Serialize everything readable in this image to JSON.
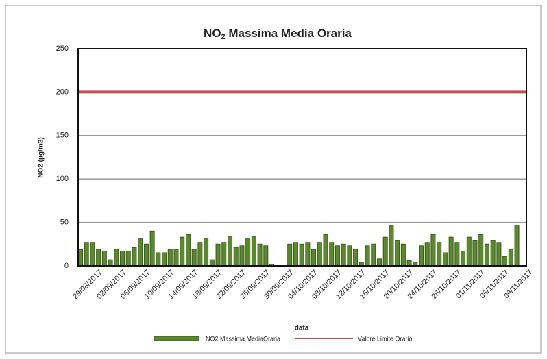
{
  "chart_data": {
    "type": "bar",
    "title": [
      "NO",
      "2",
      " Massima Media  Oraria"
    ],
    "y_label": "NO2 (μg/m3)",
    "x_label": "data",
    "categories": [
      "29/08/2017",
      null,
      null,
      null,
      "02/09/2017",
      null,
      null,
      null,
      "06/09/2017",
      null,
      null,
      null,
      "10/09/2017",
      null,
      null,
      null,
      "14/09/2017",
      null,
      null,
      null,
      "18/09/2017",
      null,
      null,
      null,
      "22/09/2017",
      null,
      null,
      null,
      "26/09/2017",
      null,
      null,
      null,
      "30/09/2017",
      null,
      null,
      null,
      "04/10/2017",
      null,
      null,
      null,
      "08/10/2017",
      null,
      null,
      null,
      "12/10/2017",
      null,
      null,
      null,
      "16/10/2017",
      null,
      null,
      null,
      "20/10/2017",
      null,
      null,
      null,
      "24/10/2017",
      null,
      null,
      null,
      "28/10/2017",
      null,
      null,
      null,
      "01/11/2017",
      null,
      null,
      null,
      "05/11/2017",
      null,
      null,
      null,
      "09/11/2017",
      null
    ],
    "series": [
      {
        "name": "NO2 Massima MediaOraria",
        "color": "#5b8a2e",
        "values": [
          19,
          27,
          27,
          19,
          17,
          7,
          19,
          17,
          17,
          21,
          31,
          25,
          40,
          15,
          15,
          19,
          19,
          33,
          36,
          19,
          27,
          31,
          7,
          25,
          27,
          34,
          21,
          23,
          31,
          34,
          25,
          23,
          2,
          null,
          null,
          25,
          27,
          25,
          27,
          19,
          27,
          36,
          27,
          23,
          25,
          23,
          19,
          4,
          23,
          25,
          8,
          33,
          46,
          29,
          25,
          6,
          4,
          23,
          27,
          36,
          27,
          15,
          33,
          27,
          17,
          33,
          29,
          36,
          25,
          29,
          27,
          11,
          19,
          46
        ]
      }
    ],
    "limit_line": {
      "name": "Valore Limite Orario",
      "value": 200,
      "color": "#c0504d"
    },
    "ylim": [
      0,
      250
    ],
    "yticks": [
      0,
      50,
      100,
      150,
      200,
      250
    ],
    "grid": true
  }
}
